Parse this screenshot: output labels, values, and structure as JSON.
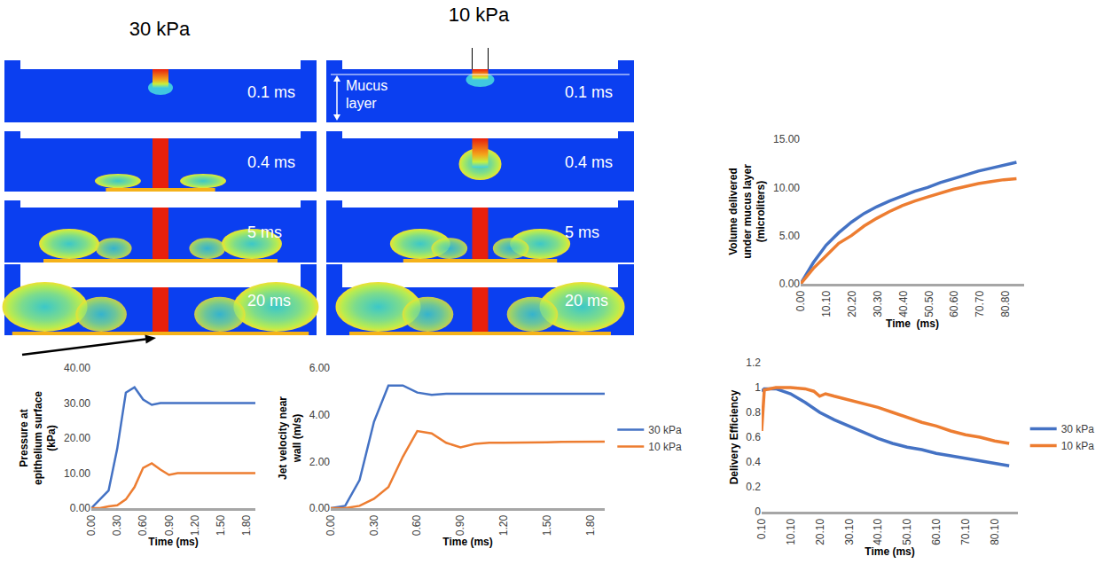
{
  "figure": {
    "columns": [
      {
        "title": "30 kPa",
        "frames": [
          "0.1 ms",
          "0.4 ms",
          "5 ms",
          "20 ms"
        ]
      },
      {
        "title": "10 kPa",
        "frames": [
          "0.1 ms",
          "0.4 ms",
          "5 ms",
          "20 ms"
        ]
      }
    ],
    "mucus_label": "Mucus layer"
  },
  "chart_data": [
    {
      "type": "line",
      "y_label": "Pressure at epithelium surface (kPa)",
      "x_label": "Time (ms)",
      "x": [
        0,
        0.1,
        0.2,
        0.3,
        0.4,
        0.5,
        0.6,
        0.7,
        0.8,
        0.9,
        1.0,
        1.1,
        1.2,
        1.3,
        1.4,
        1.5,
        1.6,
        1.7,
        1.8,
        1.9
      ],
      "xlim": [
        0,
        1.9
      ],
      "xticks": [
        {
          "value": 0,
          "label": "0.00"
        },
        {
          "value": 0.3,
          "label": "0.30"
        },
        {
          "value": 0.6,
          "label": "0.60"
        },
        {
          "value": 0.9,
          "label": "0.90"
        },
        {
          "value": 1.2,
          "label": "1.20"
        },
        {
          "value": 1.5,
          "label": "1.50"
        },
        {
          "value": 1.8,
          "label": "1.80"
        }
      ],
      "ylim": [
        0,
        40
      ],
      "yticks": [
        {
          "value": 0,
          "label": "0.00"
        },
        {
          "value": 10,
          "label": "10.00"
        },
        {
          "value": 20,
          "label": "20.00"
        },
        {
          "value": 30,
          "label": "30.00"
        },
        {
          "value": 40,
          "label": "40.00"
        }
      ],
      "grid": false,
      "legend": "none",
      "series": [
        {
          "name": "30 kPa",
          "color": "#4472c4",
          "values": [
            0,
            2.5,
            5,
            17,
            33,
            34.5,
            31,
            29.5,
            30,
            30,
            30,
            30,
            30,
            30,
            30,
            30,
            30,
            30,
            30,
            30
          ]
        },
        {
          "name": "10 kPa",
          "color": "#ed7d31",
          "values": [
            0,
            0,
            0.5,
            0.8,
            2.5,
            6,
            11.5,
            12.8,
            11,
            9.5,
            10,
            10,
            10,
            10,
            10,
            10,
            10,
            10,
            10,
            10
          ]
        }
      ]
    },
    {
      "type": "line",
      "y_label": "Jet velocity near wall (m/s)",
      "x_label": "Time (ms)",
      "x": [
        0,
        0.1,
        0.2,
        0.3,
        0.4,
        0.5,
        0.6,
        0.7,
        0.8,
        0.9,
        1.0,
        1.1,
        1.2,
        1.3,
        1.4,
        1.5,
        1.6,
        1.7,
        1.8,
        1.9
      ],
      "xlim": [
        0,
        1.9
      ],
      "xticks": [
        {
          "value": 0,
          "label": "0.00"
        },
        {
          "value": 0.3,
          "label": "0.30"
        },
        {
          "value": 0.6,
          "label": "0.60"
        },
        {
          "value": 0.9,
          "label": "0.90"
        },
        {
          "value": 1.2,
          "label": "1.20"
        },
        {
          "value": 1.5,
          "label": "1.50"
        },
        {
          "value": 1.8,
          "label": "1.80"
        }
      ],
      "ylim": [
        0,
        6
      ],
      "yticks": [
        {
          "value": 0,
          "label": "0.00"
        },
        {
          "value": 2,
          "label": "2.00"
        },
        {
          "value": 4,
          "label": "4.00"
        },
        {
          "value": 6,
          "label": "6.00"
        }
      ],
      "grid": false,
      "legend": "right",
      "series": [
        {
          "name": "30 kPa",
          "color": "#4472c4",
          "values": [
            0,
            0.1,
            1.2,
            3.7,
            5.25,
            5.25,
            4.95,
            4.85,
            4.9,
            4.9,
            4.9,
            4.9,
            4.9,
            4.9,
            4.9,
            4.9,
            4.9,
            4.9,
            4.9,
            4.9
          ]
        },
        {
          "name": "10 kPa",
          "color": "#ed7d31",
          "values": [
            0,
            0,
            0.1,
            0.4,
            0.9,
            2.2,
            3.3,
            3.2,
            2.8,
            2.6,
            2.75,
            2.8,
            2.8,
            2.8,
            2.8,
            2.82,
            2.84,
            2.85,
            2.85,
            2.85
          ]
        }
      ]
    },
    {
      "type": "line",
      "y_label": "Volume delivered under mucus layer (microliters)",
      "x_label": "Time  (ms)",
      "x": [
        0,
        5,
        10,
        15,
        20,
        25,
        30,
        35,
        40,
        45,
        50,
        55,
        60,
        65,
        70,
        75,
        80,
        85
      ],
      "xlim": [
        0,
        88
      ],
      "xticks": [
        {
          "value": 0,
          "label": "0.00"
        },
        {
          "value": 10.1,
          "label": "10.10"
        },
        {
          "value": 20.2,
          "label": "20.20"
        },
        {
          "value": 30.3,
          "label": "30.30"
        },
        {
          "value": 40.4,
          "label": "40.40"
        },
        {
          "value": 50.5,
          "label": "50.50"
        },
        {
          "value": 60.6,
          "label": "60.60"
        },
        {
          "value": 70.7,
          "label": "70.70"
        },
        {
          "value": 80.8,
          "label": "80.80"
        }
      ],
      "ylim": [
        0,
        15
      ],
      "yticks": [
        {
          "value": 0,
          "label": "0.00"
        },
        {
          "value": 5,
          "label": "5.00"
        },
        {
          "value": 10,
          "label": "10.00"
        },
        {
          "value": 15,
          "label": "15.00"
        }
      ],
      "grid": false,
      "legend": "none",
      "series": [
        {
          "name": "30 kPa",
          "color": "#4472c4",
          "values": [
            0,
            2.2,
            4.0,
            5.3,
            6.4,
            7.3,
            8.0,
            8.6,
            9.1,
            9.6,
            10.0,
            10.5,
            10.9,
            11.3,
            11.7,
            12.0,
            12.3,
            12.6
          ]
        },
        {
          "name": "10 kPa",
          "color": "#ed7d31",
          "values": [
            0,
            1.6,
            2.9,
            4.2,
            5.0,
            6.0,
            6.8,
            7.5,
            8.1,
            8.6,
            9.0,
            9.4,
            9.8,
            10.1,
            10.4,
            10.6,
            10.8,
            10.9
          ]
        }
      ]
    },
    {
      "type": "line",
      "y_label": "Delivery Efficiency",
      "x_label": "Time (ms)",
      "xlim": [
        0.1,
        88
      ],
      "xticks": [
        {
          "value": 0.1,
          "label": "0.10"
        },
        {
          "value": 10.1,
          "label": "10.10"
        },
        {
          "value": 20.1,
          "label": "20.10"
        },
        {
          "value": 30.1,
          "label": "30.10"
        },
        {
          "value": 40.1,
          "label": "40.10"
        },
        {
          "value": 50.1,
          "label": "50.10"
        },
        {
          "value": 60.1,
          "label": "60.10"
        },
        {
          "value": 70.1,
          "label": "70.10"
        },
        {
          "value": 80.1,
          "label": "80.10"
        }
      ],
      "ylim": [
        0,
        1.2
      ],
      "yticks": [
        0,
        0.2,
        0.4,
        0.6,
        0.8,
        1,
        1.2
      ],
      "grid": false,
      "legend": "right",
      "series": [
        {
          "name": "30 kPa",
          "color": "#4472c4",
          "x": [
            0.1,
            1,
            5,
            10,
            15,
            20,
            25,
            30,
            35,
            40,
            45,
            50,
            55,
            60,
            65,
            70,
            75,
            80,
            85
          ],
          "values": [
            0.97,
            0.99,
            0.99,
            0.95,
            0.88,
            0.8,
            0.74,
            0.69,
            0.64,
            0.59,
            0.55,
            0.52,
            0.5,
            0.47,
            0.45,
            0.43,
            0.41,
            0.39,
            0.37
          ]
        },
        {
          "name": "10 kPa",
          "color": "#ed7d31",
          "x": [
            0.1,
            1,
            5,
            10,
            15,
            18,
            20,
            22,
            25,
            30,
            35,
            40,
            45,
            50,
            55,
            60,
            65,
            70,
            75,
            80,
            85
          ],
          "values": [
            0.65,
            0.98,
            1.0,
            1.0,
            0.99,
            0.97,
            0.93,
            0.95,
            0.93,
            0.9,
            0.87,
            0.84,
            0.8,
            0.76,
            0.72,
            0.69,
            0.65,
            0.62,
            0.6,
            0.57,
            0.55
          ]
        }
      ]
    }
  ]
}
